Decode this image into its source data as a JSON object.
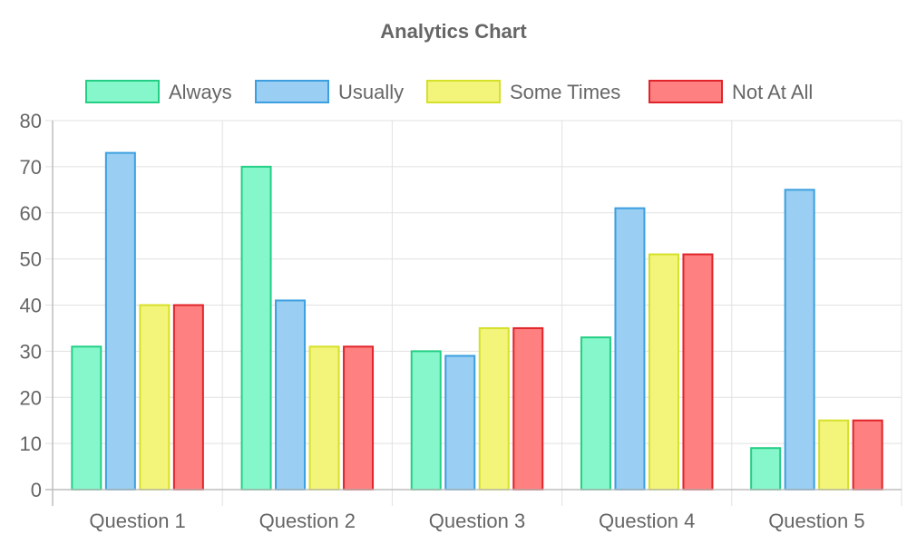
{
  "chart_data": {
    "type": "bar",
    "title": "Analytics Chart",
    "categories": [
      "Question 1",
      "Question 2",
      "Question 3",
      "Question 4",
      "Question 5"
    ],
    "series": [
      {
        "name": "Always",
        "values": [
          31,
          70,
          30,
          33,
          9
        ],
        "fill": "#86f7ca",
        "stroke": "#24cf85"
      },
      {
        "name": "Usually",
        "values": [
          73,
          41,
          29,
          61,
          65
        ],
        "fill": "#9acef2",
        "stroke": "#3c9fe0"
      },
      {
        "name": "Some Times",
        "values": [
          40,
          31,
          35,
          51,
          15
        ],
        "fill": "#f2f57a",
        "stroke": "#d5e02a"
      },
      {
        "name": "Not At All",
        "values": [
          40,
          31,
          35,
          51,
          15
        ],
        "fill": "#ff8080",
        "stroke": "#e0242a"
      }
    ],
    "ylim": [
      0,
      80
    ],
    "yticks": [
      0,
      10,
      20,
      30,
      40,
      50,
      60,
      70,
      80
    ],
    "xlabel": "",
    "ylabel": "",
    "grid": true,
    "legend_position": "top"
  }
}
